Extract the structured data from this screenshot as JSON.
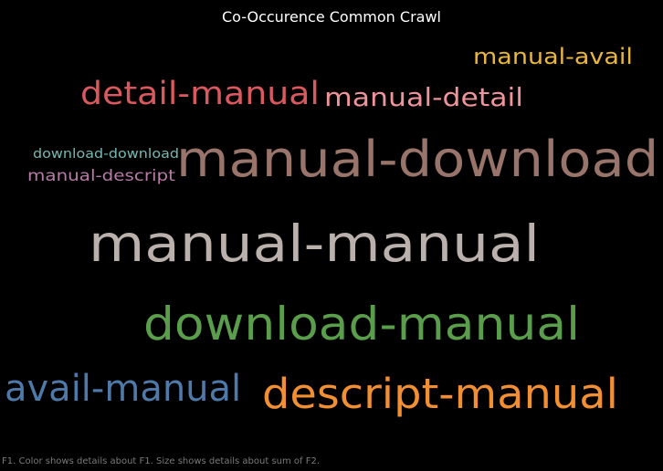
{
  "chart_data": {
    "type": "word-cloud",
    "title": "Co-Occurence Common Crawl",
    "caption": "F1.  Color shows details about F1.  Size shows details about sum of F2.",
    "words": [
      {
        "text": "manual-avail",
        "color": "#e9b73e"
      },
      {
        "text": "detail-manual",
        "color": "#d9595e"
      },
      {
        "text": "manual-detail",
        "color": "#f0949c"
      },
      {
        "text": "download-download",
        "color": "#75b9b2"
      },
      {
        "text": "manual-descript",
        "color": "#b77ba8"
      },
      {
        "text": "manual-download",
        "color": "#98746a"
      },
      {
        "text": "manual-manual",
        "color": "#bab0ac"
      },
      {
        "text": "download-manual",
        "color": "#5a9e4c"
      },
      {
        "text": "avail-manual",
        "color": "#4f79a8"
      },
      {
        "text": "descript-manual",
        "color": "#f28f32"
      }
    ]
  }
}
